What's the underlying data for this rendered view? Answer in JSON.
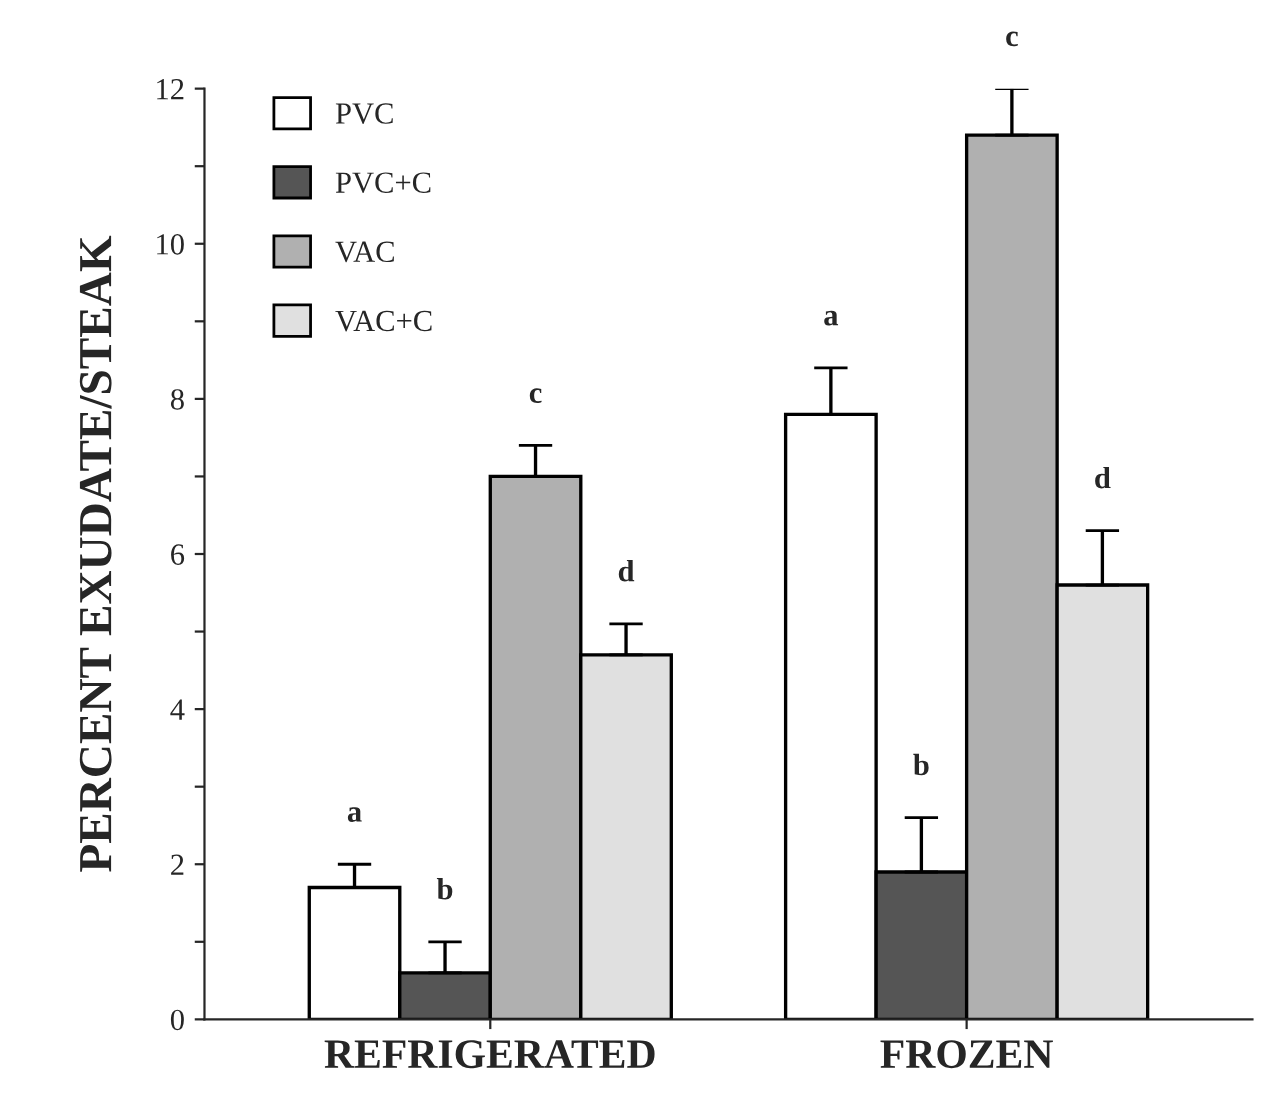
{
  "chart_data": {
    "type": "bar",
    "ylabel": "PERCENT EXUDATE/STEAK",
    "categories": [
      "REFRIGERATED",
      "FROZEN"
    ],
    "series": [
      {
        "name": "PVC",
        "color": "#ffffff",
        "values": [
          1.7,
          7.8
        ],
        "errors": [
          0.3,
          0.6
        ]
      },
      {
        "name": "PVC+C",
        "color": "#555555",
        "values": [
          0.6,
          1.9
        ],
        "errors": [
          0.4,
          0.7
        ]
      },
      {
        "name": "VAC",
        "color": "#b0b0b0",
        "values": [
          7.0,
          11.4
        ],
        "errors": [
          0.4,
          0.6
        ]
      },
      {
        "name": "VAC+C",
        "color": "#e0e0e0",
        "values": [
          4.7,
          5.6
        ],
        "errors": [
          0.4,
          0.7
        ]
      }
    ],
    "annotations": [
      "a",
      "b",
      "c",
      "d",
      "a",
      "b",
      "c",
      "d"
    ],
    "ylim": [
      0,
      12
    ],
    "yticks": [
      0,
      {
        "value": 1,
        "label": null
      },
      2,
      {
        "value": 3,
        "label": null
      },
      4,
      {
        "value": 5,
        "label": null
      },
      6,
      {
        "value": 7,
        "label": null
      },
      8,
      {
        "value": 9,
        "label": null
      },
      10,
      {
        "value": 11,
        "label": null
      },
      12
    ],
    "grid": false,
    "legend": "top left"
  }
}
